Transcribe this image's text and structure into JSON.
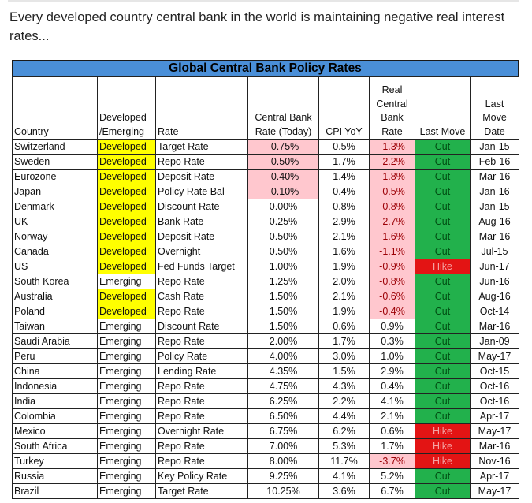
{
  "intro": "Every developed country central bank in the world is maintaining negative real interest rates...",
  "table": {
    "title": "Global Central Bank Policy Rates",
    "headers": {
      "country": "Country",
      "dev_emerging": "Developed /Emerging",
      "rate": "Rate",
      "cb_rate": "Central Bank Rate (Today)",
      "cpi": "CPI YoY",
      "real_rate": "Real Central Bank Rate",
      "last_move": "Last Move",
      "last_move_date": "Last Move Date"
    },
    "rows": [
      {
        "country": "Switzerland",
        "type": "Developed",
        "rate": "Target Rate",
        "cb": "-0.75%",
        "cpi": "0.5%",
        "real": "-1.3%",
        "move": "Cut",
        "date": "Jan-15"
      },
      {
        "country": "Sweden",
        "type": "Developed",
        "rate": "Repo Rate",
        "cb": "-0.50%",
        "cpi": "1.7%",
        "real": "-2.2%",
        "move": "Cut",
        "date": "Feb-16"
      },
      {
        "country": "Eurozone",
        "type": "Developed",
        "rate": "Deposit Rate",
        "cb": "-0.40%",
        "cpi": "1.4%",
        "real": "-1.8%",
        "move": "Cut",
        "date": "Mar-16"
      },
      {
        "country": "Japan",
        "type": "Developed",
        "rate": "Policy Rate Bal",
        "cb": "-0.10%",
        "cpi": "0.4%",
        "real": "-0.5%",
        "move": "Cut",
        "date": "Jan-16"
      },
      {
        "country": "Denmark",
        "type": "Developed",
        "rate": "Discount Rate",
        "cb": "0.00%",
        "cpi": "0.8%",
        "real": "-0.8%",
        "move": "Cut",
        "date": "Jan-15"
      },
      {
        "country": "UK",
        "type": "Developed",
        "rate": "Bank Rate",
        "cb": "0.25%",
        "cpi": "2.9%",
        "real": "-2.7%",
        "move": "Cut",
        "date": "Aug-16"
      },
      {
        "country": "Norway",
        "type": "Developed",
        "rate": "Deposit Rate",
        "cb": "0.50%",
        "cpi": "2.1%",
        "real": "-1.6%",
        "move": "Cut",
        "date": "Mar-16"
      },
      {
        "country": "Canada",
        "type": "Developed",
        "rate": "Overnight",
        "cb": "0.50%",
        "cpi": "1.6%",
        "real": "-1.1%",
        "move": "Cut",
        "date": "Jul-15"
      },
      {
        "country": "US",
        "type": "Developed",
        "rate": "Fed Funds Target",
        "cb": "1.00%",
        "cpi": "1.9%",
        "real": "-0.9%",
        "move": "Hike",
        "date": "Jun-17"
      },
      {
        "country": "South Korea",
        "type": "Emerging",
        "rate": "Repo Rate",
        "cb": "1.25%",
        "cpi": "2.0%",
        "real": "-0.8%",
        "move": "Cut",
        "date": "Jun-16"
      },
      {
        "country": "Australia",
        "type": "Developed",
        "rate": "Cash Rate",
        "cb": "1.50%",
        "cpi": "2.1%",
        "real": "-0.6%",
        "move": "Cut",
        "date": "Aug-16"
      },
      {
        "country": "Poland",
        "type": "Developed",
        "rate": "Repo Rate",
        "cb": "1.50%",
        "cpi": "1.9%",
        "real": "-0.4%",
        "move": "Cut",
        "date": "Oct-14"
      },
      {
        "country": "Taiwan",
        "type": "Emerging",
        "rate": "Discount Rate",
        "cb": "1.50%",
        "cpi": "0.6%",
        "real": "0.9%",
        "move": "Cut",
        "date": "Mar-16"
      },
      {
        "country": "Saudi Arabia",
        "type": "Emerging",
        "rate": "Repo Rate",
        "cb": "2.00%",
        "cpi": "1.7%",
        "real": "0.3%",
        "move": "Cut",
        "date": "Jan-09"
      },
      {
        "country": "Peru",
        "type": "Emerging",
        "rate": "Policy Rate",
        "cb": "4.00%",
        "cpi": "3.0%",
        "real": "1.0%",
        "move": "Cut",
        "date": "May-17"
      },
      {
        "country": "China",
        "type": "Emerging",
        "rate": "Lending Rate",
        "cb": "4.35%",
        "cpi": "1.5%",
        "real": "2.9%",
        "move": "Cut",
        "date": "Oct-15"
      },
      {
        "country": "Indonesia",
        "type": "Emerging",
        "rate": "Repo Rate",
        "cb": "4.75%",
        "cpi": "4.3%",
        "real": "0.4%",
        "move": "Cut",
        "date": "Oct-16"
      },
      {
        "country": "India",
        "type": "Emerging",
        "rate": "Repo Rate",
        "cb": "6.25%",
        "cpi": "2.2%",
        "real": "4.1%",
        "move": "Cut",
        "date": "Oct-16"
      },
      {
        "country": "Colombia",
        "type": "Emerging",
        "rate": "Repo Rate",
        "cb": "6.50%",
        "cpi": "4.4%",
        "real": "2.1%",
        "move": "Cut",
        "date": "Apr-17"
      },
      {
        "country": "Mexico",
        "type": "Emerging",
        "rate": "Overnight Rate",
        "cb": "6.75%",
        "cpi": "6.2%",
        "real": "0.6%",
        "move": "Hike",
        "date": "May-17"
      },
      {
        "country": "South Africa",
        "type": "Emerging",
        "rate": "Repo Rate",
        "cb": "7.00%",
        "cpi": "5.3%",
        "real": "1.7%",
        "move": "Hike",
        "date": "Mar-16"
      },
      {
        "country": "Turkey",
        "type": "Emerging",
        "rate": "Repo Rate",
        "cb": "8.00%",
        "cpi": "11.7%",
        "real": "-3.7%",
        "move": "Hike",
        "date": "Nov-16"
      },
      {
        "country": "Russia",
        "type": "Emerging",
        "rate": "Key Policy Rate",
        "cb": "9.25%",
        "cpi": "4.1%",
        "real": "5.2%",
        "move": "Cut",
        "date": "Apr-17"
      },
      {
        "country": "Brazil",
        "type": "Emerging",
        "rate": "Target Rate",
        "cb": "10.25%",
        "cpi": "3.6%",
        "real": "6.7%",
        "move": "Cut",
        "date": "May-17"
      }
    ]
  },
  "colors": {
    "title_bar": "#4a8fd8",
    "developed_highlight": "#ffff00",
    "negative_fill": "#ffc7ce",
    "cut_fill": "#22b14c",
    "hike_fill": "#e31414"
  }
}
